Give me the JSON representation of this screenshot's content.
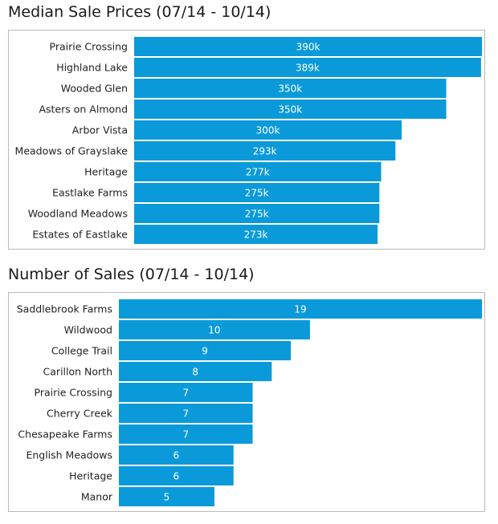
{
  "chart_data": [
    {
      "type": "bar",
      "orientation": "horizontal",
      "title": "Median Sale Prices (07/14 - 10/14)",
      "categories": [
        "Prairie Crossing",
        "Highland Lake",
        "Wooded Glen",
        "Asters on Almond",
        "Arbor Vista",
        "Meadows of Grayslake",
        "Heritage",
        "Eastlake Farms",
        "Woodland Meadows",
        "Estates of Eastlake"
      ],
      "values": [
        390,
        389,
        350,
        350,
        300,
        293,
        277,
        275,
        275,
        273
      ],
      "data_labels": [
        "390k",
        "389k",
        "350k",
        "350k",
        "300k",
        "293k",
        "277k",
        "275k",
        "275k",
        "273k"
      ],
      "xlim": [
        0,
        390
      ],
      "bar_color": "#0b9ad9",
      "grid": false,
      "legend": "none"
    },
    {
      "type": "bar",
      "orientation": "horizontal",
      "title": "Number of Sales (07/14 - 10/14)",
      "categories": [
        "Saddlebrook Farms",
        "Wildwood",
        "College Trail",
        "Carillon North",
        "Prairie Crossing",
        "Cherry Creek",
        "Chesapeake Farms",
        "English Meadows",
        "Heritage",
        "Manor"
      ],
      "values": [
        19,
        10,
        9,
        8,
        7,
        7,
        7,
        6,
        6,
        5
      ],
      "data_labels": [
        "19",
        "10",
        "9",
        "8",
        "7",
        "7",
        "7",
        "6",
        "6",
        "5"
      ],
      "xlim": [
        0,
        19
      ],
      "bar_color": "#0b9ad9",
      "grid": false,
      "legend": "none"
    }
  ]
}
